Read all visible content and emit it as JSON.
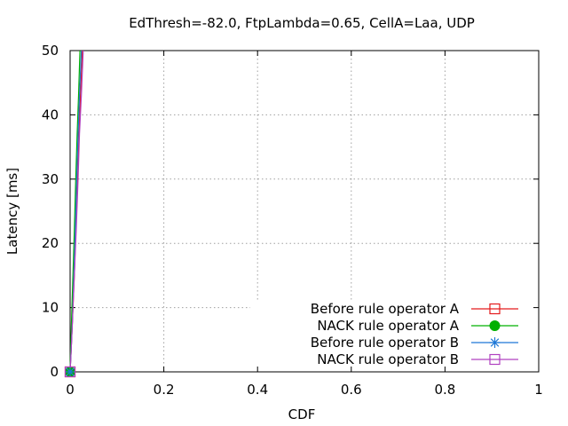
{
  "chart_data": {
    "type": "line",
    "title": "EdThresh=-82.0, FtpLambda=0.65, CellA=Laa, UDP",
    "xlabel": "CDF",
    "ylabel": "Latency [ms]",
    "xlim": [
      0,
      1
    ],
    "ylim": [
      0,
      50
    ],
    "xticks": [
      "0",
      "0.2",
      "0.4",
      "0.6",
      "0.8",
      "1"
    ],
    "yticks": [
      "0",
      "10",
      "20",
      "30",
      "40",
      "50"
    ],
    "grid": true,
    "legend_position": "bottom-right",
    "series": [
      {
        "name": "Before rule operator A",
        "color": "#e41a1c",
        "marker": "open-square",
        "points": [
          [
            0,
            0
          ],
          [
            0.002,
            3
          ],
          [
            0.005,
            8
          ],
          [
            0.009,
            15
          ],
          [
            0.012,
            22
          ],
          [
            0.016,
            30
          ],
          [
            0.019,
            37
          ],
          [
            0.022,
            43
          ],
          [
            0.026,
            50
          ]
        ]
      },
      {
        "name": "NACK rule operator A",
        "color": "#00b000",
        "marker": "filled-circle",
        "points": [
          [
            0,
            0
          ],
          [
            0.001,
            3
          ],
          [
            0.003,
            8
          ],
          [
            0.006,
            15
          ],
          [
            0.009,
            22
          ],
          [
            0.012,
            30
          ],
          [
            0.015,
            37
          ],
          [
            0.018,
            43
          ],
          [
            0.021,
            50
          ]
        ]
      },
      {
        "name": "Before rule operator B",
        "color": "#1e78d7",
        "marker": "star",
        "points": [
          [
            0,
            0
          ],
          [
            0.002,
            3
          ],
          [
            0.005,
            8
          ],
          [
            0.008,
            15
          ],
          [
            0.011,
            22
          ],
          [
            0.014,
            30
          ],
          [
            0.017,
            37
          ],
          [
            0.02,
            43
          ],
          [
            0.024,
            50
          ]
        ]
      },
      {
        "name": "NACK rule operator B",
        "color": "#b040c0",
        "marker": "open-square",
        "points": [
          [
            0,
            0
          ],
          [
            0.002,
            3
          ],
          [
            0.005,
            8
          ],
          [
            0.009,
            15
          ],
          [
            0.013,
            22
          ],
          [
            0.017,
            30
          ],
          [
            0.02,
            37
          ],
          [
            0.024,
            43
          ],
          [
            0.028,
            50
          ]
        ]
      }
    ]
  }
}
